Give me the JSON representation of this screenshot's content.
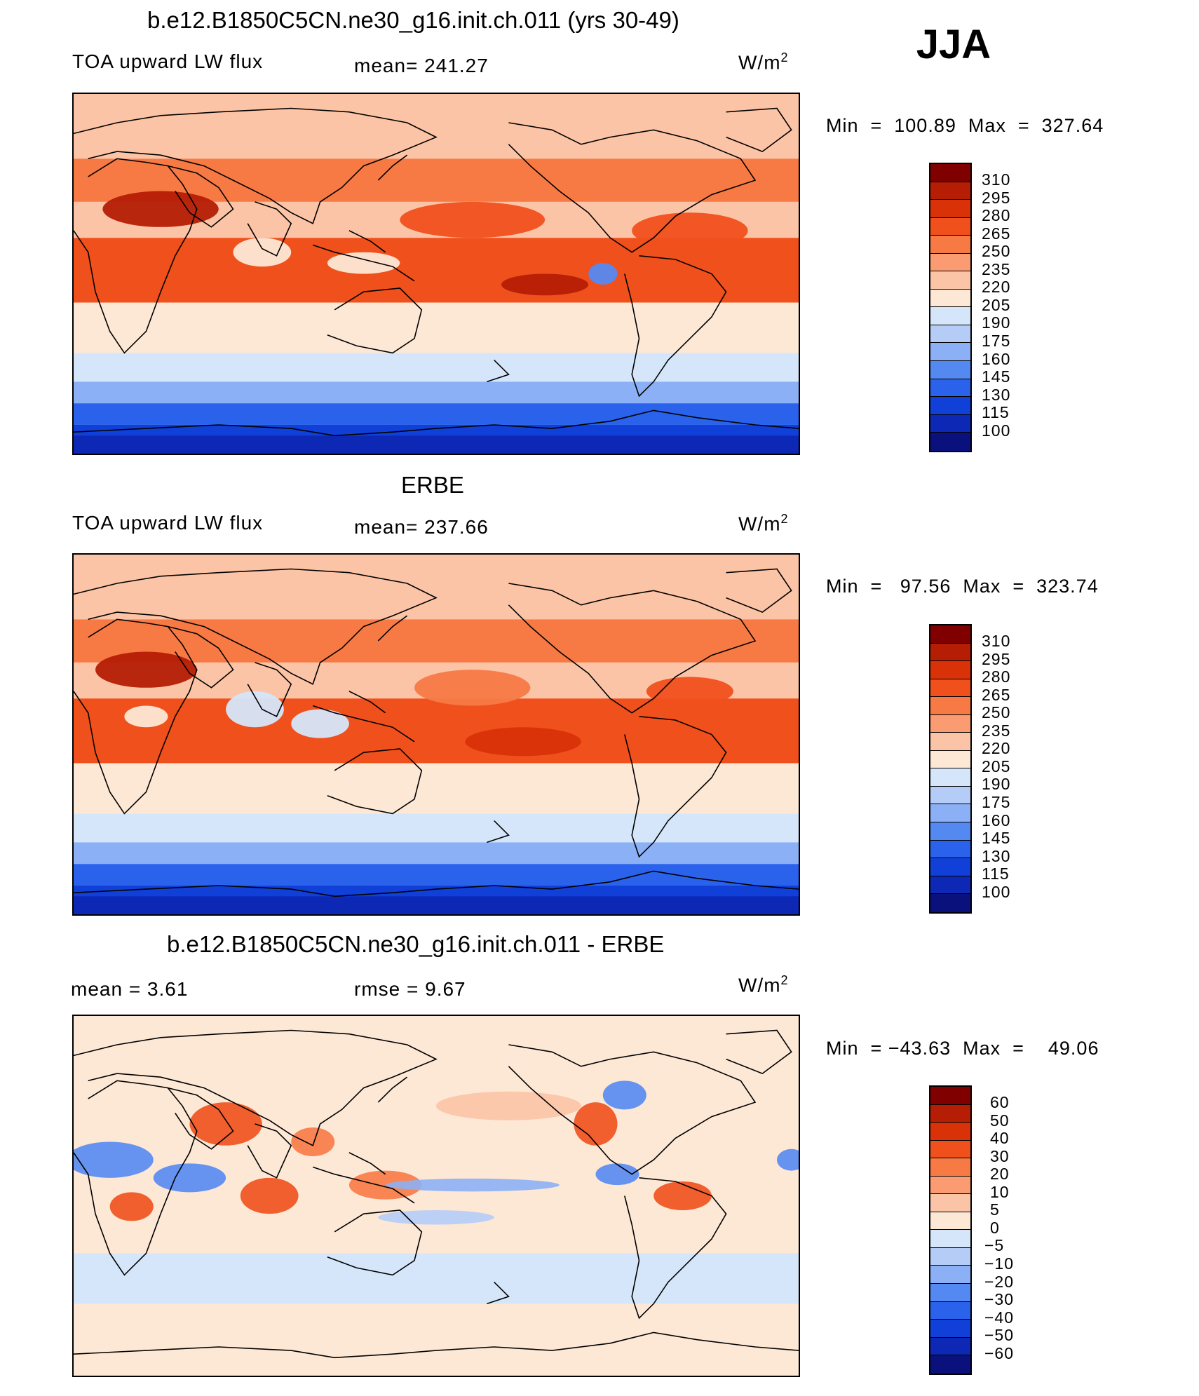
{
  "season": "JJA",
  "panels": [
    {
      "title": "b.e12.B1850C5CN.ne30_g16.init.ch.011 (yrs 30-49)",
      "left_label": "TOA upward LW flux",
      "center_label": "mean=  241.27",
      "units": "W/m",
      "units_sup": "2",
      "minmax": "Min  =  100.89  Max  =  327.64",
      "colorbar": {
        "labels": [
          "310",
          "295",
          "280",
          "265",
          "250",
          "235",
          "220",
          "205",
          "190",
          "175",
          "160",
          "145",
          "130",
          "115",
          "100"
        ],
        "colors": [
          "#800000",
          "#b51e05",
          "#d93208",
          "#f0501c",
          "#f77a45",
          "#fa9b72",
          "#fcc4a6",
          "#fde8d6",
          "#d5e6fa",
          "#b5ccf7",
          "#8cb0f5",
          "#5589f2",
          "#2a62eb",
          "#1040d8",
          "#0c28b5",
          "#0a107c"
        ]
      },
      "map_kind": "model"
    },
    {
      "title": "ERBE",
      "left_label": "TOA upward LW flux",
      "center_label": "mean=  237.66",
      "units": "W/m",
      "units_sup": "2",
      "minmax": "Min  =   97.56  Max  =  323.74",
      "colorbar": {
        "labels": [
          "310",
          "295",
          "280",
          "265",
          "250",
          "235",
          "220",
          "205",
          "190",
          "175",
          "160",
          "145",
          "130",
          "115",
          "100"
        ],
        "colors": [
          "#800000",
          "#b51e05",
          "#d93208",
          "#f0501c",
          "#f77a45",
          "#fa9b72",
          "#fcc4a6",
          "#fde8d6",
          "#d5e6fa",
          "#b5ccf7",
          "#8cb0f5",
          "#5589f2",
          "#2a62eb",
          "#1040d8",
          "#0c28b5",
          "#0a107c"
        ]
      },
      "map_kind": "obs"
    },
    {
      "title": "b.e12.B1850C5CN.ne30_g16.init.ch.011 - ERBE",
      "left_label": "mean  =     3.61",
      "center_label": "rmse  =     9.67",
      "units": "W/m",
      "units_sup": "2",
      "minmax": "Min  = −43.63  Max  =    49.06",
      "colorbar": {
        "labels": [
          "60",
          "50",
          "40",
          "30",
          "20",
          "10",
          "5",
          "0",
          "−5",
          "−10",
          "−20",
          "−30",
          "−40",
          "−50",
          "−60"
        ],
        "colors": [
          "#800000",
          "#b51e05",
          "#d93208",
          "#f0501c",
          "#f77a45",
          "#fa9b72",
          "#fcc4a6",
          "#fde8d6",
          "#d5e6fa",
          "#b5ccf7",
          "#8cb0f5",
          "#5589f2",
          "#2a62eb",
          "#1040d8",
          "#0c28b5",
          "#0a107c"
        ]
      },
      "map_kind": "diff"
    }
  ]
}
